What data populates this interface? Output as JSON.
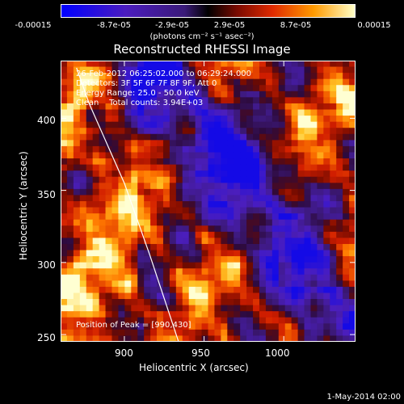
{
  "colorbar": {
    "tick_labels": [
      "-0.00015",
      "-8.7e-05",
      "-2.9e-05",
      "2.9e-05",
      "8.7e-05",
      "0.00015"
    ],
    "units": "(photons cm⁻² s⁻¹ asec⁻²)",
    "range": [
      -0.00015,
      0.00015
    ]
  },
  "chart_data": {
    "type": "heatmap",
    "title": "Reconstructed RHESSI Image",
    "xlabel": "Heliocentric X (arcsec)",
    "ylabel": "Heliocentric Y (arcsec)",
    "xlim": [
      860,
      1045
    ],
    "ylim": [
      245,
      440
    ],
    "xticks": [
      "900",
      "950",
      "1000"
    ],
    "yticks": [
      "250",
      "300",
      "350",
      "400"
    ],
    "x_tick_values": [
      900,
      950,
      1000
    ],
    "y_tick_values": [
      250,
      300,
      350,
      400
    ],
    "limb_curve": [
      [
        870,
        435
      ],
      [
        878,
        410
      ],
      [
        890,
        380
      ],
      [
        900,
        355
      ],
      [
        908,
        330
      ],
      [
        916,
        305
      ],
      [
        922,
        285
      ],
      [
        928,
        265
      ],
      [
        934,
        245
      ]
    ],
    "annotations": {
      "time": "26-Feb-2012 06:25:02.000 to 06:29:24.000",
      "detectors": "Detectors: 3F 5F 6F 7F 8F 9F, Att 0",
      "energy": "Energy Range: 25.0 - 50.0 keV",
      "method": "Clean    Total counts: 3.94E+03",
      "peak": "Position of Peak = [990,430]"
    }
  },
  "footer": "1-May-2014 02:00"
}
